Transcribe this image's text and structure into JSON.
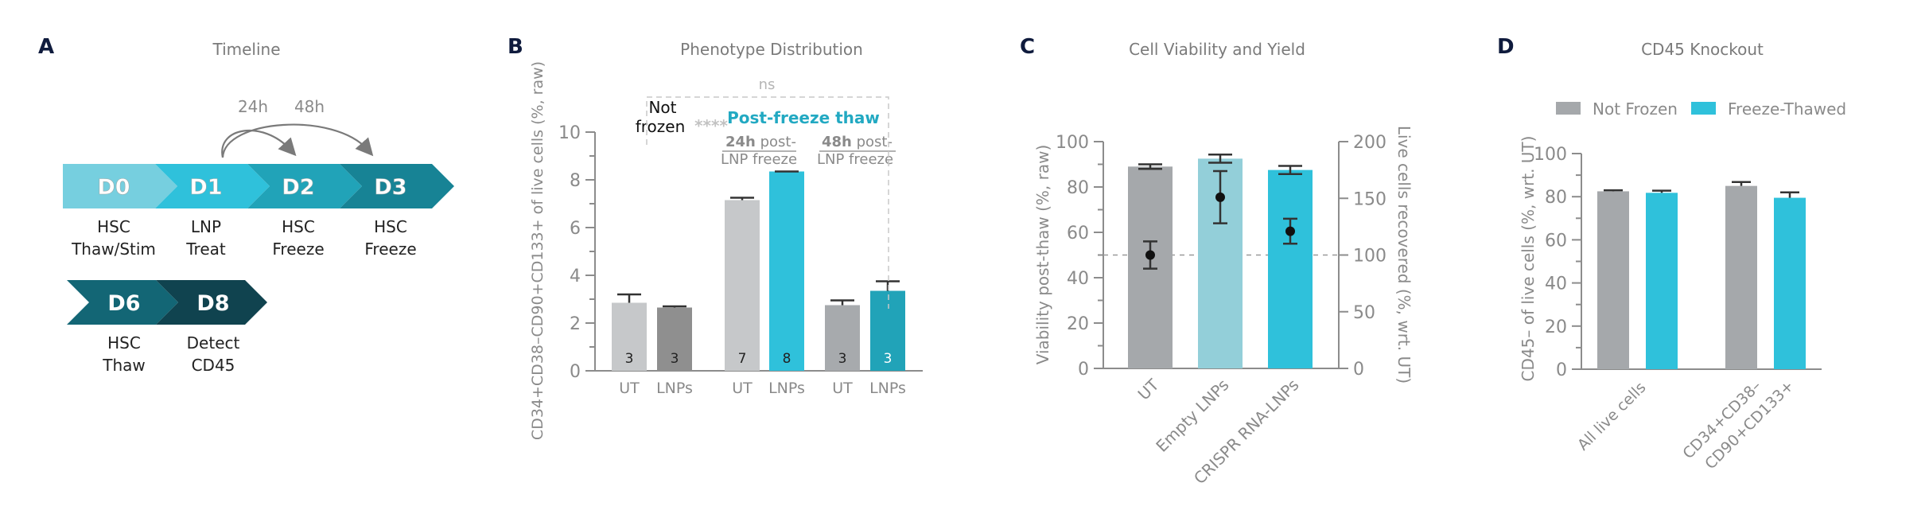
{
  "panels": {
    "A": {
      "letter": "A",
      "title": "Timeline",
      "arrows": [
        {
          "label": "24h",
          "from": "D1",
          "to": "D2"
        },
        {
          "label": "48h",
          "from": "D1",
          "to": "D3"
        }
      ],
      "row1": [
        {
          "day": "D0",
          "line1": "HSC",
          "line2": "Thaw/Stim",
          "color": "#76cfdf"
        },
        {
          "day": "D1",
          "line1": "LNP",
          "line2": "Treat",
          "color": "#2fc1db"
        },
        {
          "day": "D2",
          "line1": "HSC",
          "line2": "Freeze",
          "color": "#21a3b8"
        },
        {
          "day": "D3",
          "line1": "HSC",
          "line2": "Freeze",
          "color": "#178395"
        }
      ],
      "row2": [
        {
          "day": "D6",
          "line1": "HSC",
          "line2": "Thaw",
          "color": "#136675"
        },
        {
          "day": "D8",
          "line1": "Detect",
          "line2": "CD45",
          "color": "#10434f"
        }
      ]
    },
    "B": {
      "letter": "B"
    },
    "C": {
      "letter": "C"
    },
    "D": {
      "letter": "D"
    }
  },
  "chart_data": [
    {
      "id": "B",
      "type": "bar",
      "title": "Phenotype Distribution",
      "ylabel": "CD34+CD38–CD90+CD133+ of live cells (%, raw)",
      "xlabel": "",
      "ylim": [
        0,
        10
      ],
      "yticks": [
        0,
        2,
        4,
        6,
        8,
        10
      ],
      "groups": [
        {
          "label": "Not frozen",
          "label_lines": [
            "Not",
            "frozen"
          ]
        },
        {
          "label": "24h post-LNP freeze",
          "bold": "24h",
          "rest1": " post-",
          "line2": "LNP freeze"
        },
        {
          "label": "48h post-LNP freeze",
          "bold": "48h",
          "rest1": " post-",
          "line2": "LNP freeze"
        }
      ],
      "header_annotation": "Post-freeze thaw",
      "bars": [
        {
          "category": "UT",
          "group": 0,
          "value": 2.85,
          "error": 0.35,
          "n": "3",
          "color": "#c6c8ca",
          "ncolor": "#222222"
        },
        {
          "category": "LNPs",
          "group": 0,
          "value": 2.65,
          "error": 0.05,
          "n": "3",
          "color": "#8f8f8f",
          "ncolor": "#222222"
        },
        {
          "category": "UT",
          "group": 1,
          "value": 7.15,
          "error": 0.1,
          "n": "7",
          "color": "#c6c8ca",
          "ncolor": "#222222"
        },
        {
          "category": "LNPs",
          "group": 1,
          "value": 8.35,
          "error": 0.0,
          "n": "8",
          "color": "#2fc1db",
          "ncolor": "#222222"
        },
        {
          "category": "UT",
          "group": 2,
          "value": 2.75,
          "error": 0.2,
          "n": "3",
          "color": "#a7aaad",
          "ncolor": "#222222"
        },
        {
          "category": "LNPs",
          "group": 2,
          "value": 3.35,
          "error": 0.4,
          "n": "3",
          "color": "#21a3b8",
          "ncolor": "#ffffff"
        }
      ],
      "significance": [
        {
          "text": "****",
          "between": "Not frozen vs Post-freeze thaw"
        },
        {
          "text": "ns",
          "between": "Not frozen vs 48h post-LNP freeze LNPs"
        }
      ],
      "grid": false
    },
    {
      "id": "C",
      "type": "bar",
      "title": "Cell Viability and Yield",
      "ylabel": "Viability post-thaw (%, raw)",
      "y2label": "Live cells recovered (%, wrt. UT)",
      "ylim": [
        0,
        100
      ],
      "y2lim": [
        0,
        200
      ],
      "yticks": [
        0,
        20,
        40,
        60,
        80,
        100
      ],
      "y2ticks": [
        0,
        50,
        100,
        150,
        200
      ],
      "categories": [
        "UT",
        "Empty LNPs",
        "CRISPR RNA-LNPs"
      ],
      "series": [
        {
          "name": "Viability (bars, left axis)",
          "values": [
            89,
            92.5,
            87.5
          ],
          "errors": [
            1.0,
            1.8,
            1.8
          ],
          "colors": [
            "#a5a8ab",
            "#93cfd9",
            "#2fc1db"
          ]
        },
        {
          "name": "Live cells recovered (points, right axis)",
          "values": [
            100,
            151,
            121
          ],
          "errors": [
            12,
            23,
            11
          ]
        }
      ],
      "reference_line": {
        "axis": "y2",
        "value": 100,
        "style": "dashed"
      },
      "grid": false
    },
    {
      "id": "D",
      "type": "bar",
      "title": "CD45 Knockout",
      "ylabel": "CD45– of live cells (%, wrt. UT)",
      "ylim": [
        0,
        100
      ],
      "yticks": [
        0,
        20,
        40,
        60,
        80,
        100
      ],
      "categories": [
        "All live cells",
        "CD34+CD38– CD90+CD133+"
      ],
      "category_lines": [
        [
          "All live cells"
        ],
        [
          "CD34+CD38–",
          "CD90+CD133+"
        ]
      ],
      "legend": "top",
      "series": [
        {
          "name": "Not Frozen",
          "color": "#a5a8ab",
          "values": [
            82.5,
            85
          ],
          "errors": [
            0.5,
            1.8
          ]
        },
        {
          "name": "Freeze-Thawed",
          "color": "#2fc1db",
          "values": [
            81.8,
            79.5
          ],
          "errors": [
            1.0,
            2.5
          ]
        }
      ],
      "grid": false
    }
  ]
}
